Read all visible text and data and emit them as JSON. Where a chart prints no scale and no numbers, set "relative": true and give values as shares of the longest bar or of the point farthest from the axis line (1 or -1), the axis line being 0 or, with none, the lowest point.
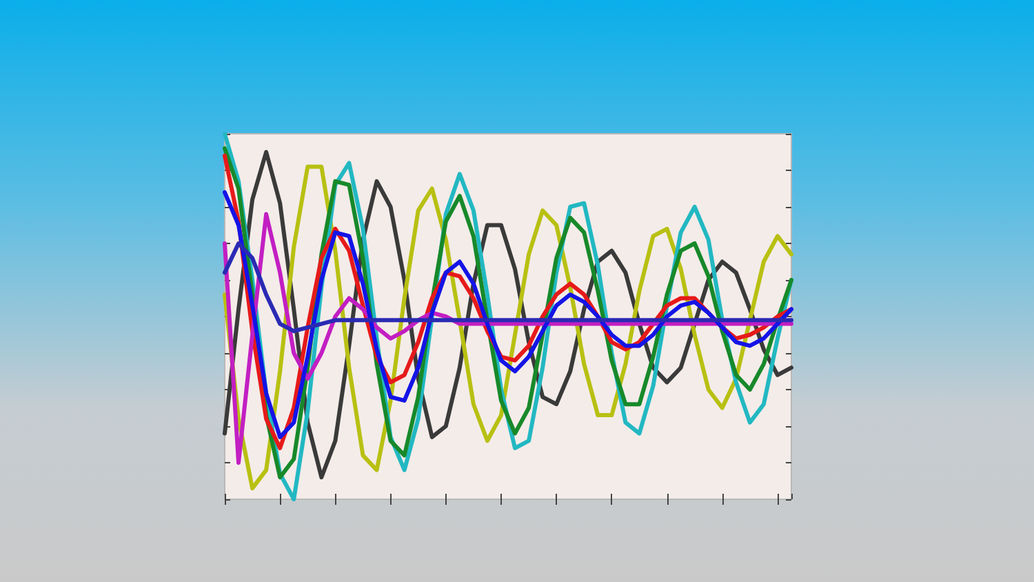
{
  "chart_data": {
    "type": "line",
    "relative": true,
    "marker": "none",
    "grid": false,
    "categories": [
      null,
      null,
      null,
      null,
      null,
      null,
      null,
      null,
      null,
      null,
      null,
      null,
      null,
      null,
      null,
      null,
      null,
      null,
      null,
      null,
      null,
      null,
      null,
      null,
      null,
      null,
      null,
      null,
      null,
      null,
      null,
      null,
      null,
      null,
      null,
      null,
      null,
      null,
      null,
      null,
      null,
      null
    ],
    "series": [
      {
        "color": "#3a3a3a",
        "values": [
          0.18,
          0.52,
          0.82,
          0.95,
          0.81,
          0.52,
          0.21,
          0.06,
          0.16,
          0.42,
          0.71,
          0.87,
          0.8,
          0.6,
          0.33,
          0.17,
          0.2,
          0.36,
          0.59,
          0.75,
          0.75,
          0.63,
          0.43,
          0.28,
          0.26,
          0.35,
          0.52,
          0.65,
          0.68,
          0.62,
          0.48,
          0.36,
          0.32,
          0.36,
          0.48,
          0.6,
          0.65,
          0.62,
          0.52,
          0.41,
          0.34,
          0.36
        ]
      },
      {
        "color": "#b8c012",
        "values": [
          0.56,
          0.22,
          0.03,
          0.08,
          0.35,
          0.69,
          0.91,
          0.91,
          0.68,
          0.36,
          0.12,
          0.08,
          0.27,
          0.55,
          0.79,
          0.85,
          0.71,
          0.49,
          0.26,
          0.16,
          0.23,
          0.45,
          0.67,
          0.79,
          0.75,
          0.58,
          0.37,
          0.23,
          0.23,
          0.37,
          0.57,
          0.72,
          0.74,
          0.63,
          0.45,
          0.3,
          0.25,
          0.33,
          0.49,
          0.65,
          0.72,
          0.67
        ]
      },
      {
        "color": "#22b8c2",
        "values": [
          1.0,
          0.87,
          0.6,
          0.29,
          0.07,
          0.0,
          0.24,
          0.58,
          0.86,
          0.92,
          0.74,
          0.44,
          0.17,
          0.08,
          0.22,
          0.5,
          0.78,
          0.89,
          0.79,
          0.56,
          0.3,
          0.14,
          0.16,
          0.36,
          0.62,
          0.8,
          0.81,
          0.64,
          0.4,
          0.21,
          0.18,
          0.31,
          0.53,
          0.73,
          0.8,
          0.71,
          0.49,
          0.32,
          0.21,
          0.26,
          0.44,
          0.6
        ]
      },
      {
        "color": "#17892a",
        "values": [
          0.96,
          0.85,
          0.56,
          0.23,
          0.06,
          0.11,
          0.36,
          0.67,
          0.87,
          0.86,
          0.66,
          0.37,
          0.16,
          0.12,
          0.28,
          0.54,
          0.76,
          0.83,
          0.72,
          0.49,
          0.27,
          0.18,
          0.25,
          0.45,
          0.66,
          0.77,
          0.73,
          0.57,
          0.38,
          0.26,
          0.26,
          0.39,
          0.56,
          0.68,
          0.7,
          0.61,
          0.46,
          0.34,
          0.3,
          0.37,
          0.49,
          0.6
        ]
      },
      {
        "color": "#e61a1a",
        "values": [
          0.94,
          0.76,
          0.46,
          0.22,
          0.14,
          0.25,
          0.47,
          0.66,
          0.74,
          0.68,
          0.53,
          0.39,
          0.32,
          0.34,
          0.43,
          0.55,
          0.62,
          0.61,
          0.55,
          0.46,
          0.39,
          0.38,
          0.42,
          0.5,
          0.56,
          0.59,
          0.56,
          0.5,
          0.43,
          0.41,
          0.43,
          0.48,
          0.53,
          0.55,
          0.55,
          0.51,
          0.47,
          0.44,
          0.45,
          0.47,
          0.5,
          0.52
        ]
      },
      {
        "color": "#c21fc2",
        "values": [
          0.7,
          0.1,
          0.45,
          0.78,
          0.62,
          0.4,
          0.33,
          0.4,
          0.5,
          0.55,
          0.52,
          0.47,
          0.44,
          0.46,
          0.49,
          0.51,
          0.5,
          0.48,
          0.48,
          0.48,
          0.48,
          0.48,
          0.48,
          0.48,
          0.48,
          0.48,
          0.48,
          0.48,
          0.48,
          0.48,
          0.48,
          0.48,
          0.48,
          0.48,
          0.48,
          0.48,
          0.48,
          0.48,
          0.48,
          0.48,
          0.48,
          0.48
        ]
      },
      {
        "color": "#1414e6",
        "values": [
          0.84,
          0.75,
          0.53,
          0.29,
          0.17,
          0.21,
          0.39,
          0.6,
          0.73,
          0.72,
          0.59,
          0.41,
          0.28,
          0.27,
          0.36,
          0.51,
          0.62,
          0.65,
          0.59,
          0.48,
          0.38,
          0.35,
          0.39,
          0.46,
          0.53,
          0.56,
          0.54,
          0.5,
          0.45,
          0.42,
          0.42,
          0.45,
          0.5,
          0.53,
          0.54,
          0.51,
          0.47,
          0.43,
          0.42,
          0.44,
          0.48,
          0.52
        ]
      },
      {
        "color": "#2a2ab4",
        "values": [
          0.62,
          0.7,
          0.66,
          0.56,
          0.48,
          0.46,
          0.47,
          0.48,
          0.49,
          0.49,
          0.49,
          0.49,
          0.49,
          0.49,
          0.49,
          0.49,
          0.49,
          0.49,
          0.49,
          0.49,
          0.49,
          0.49,
          0.49,
          0.49,
          0.49,
          0.49,
          0.49,
          0.49,
          0.49,
          0.49,
          0.49,
          0.49,
          0.49,
          0.49,
          0.49,
          0.49,
          0.49,
          0.49,
          0.49,
          0.49,
          0.49,
          0.49
        ]
      }
    ]
  }
}
